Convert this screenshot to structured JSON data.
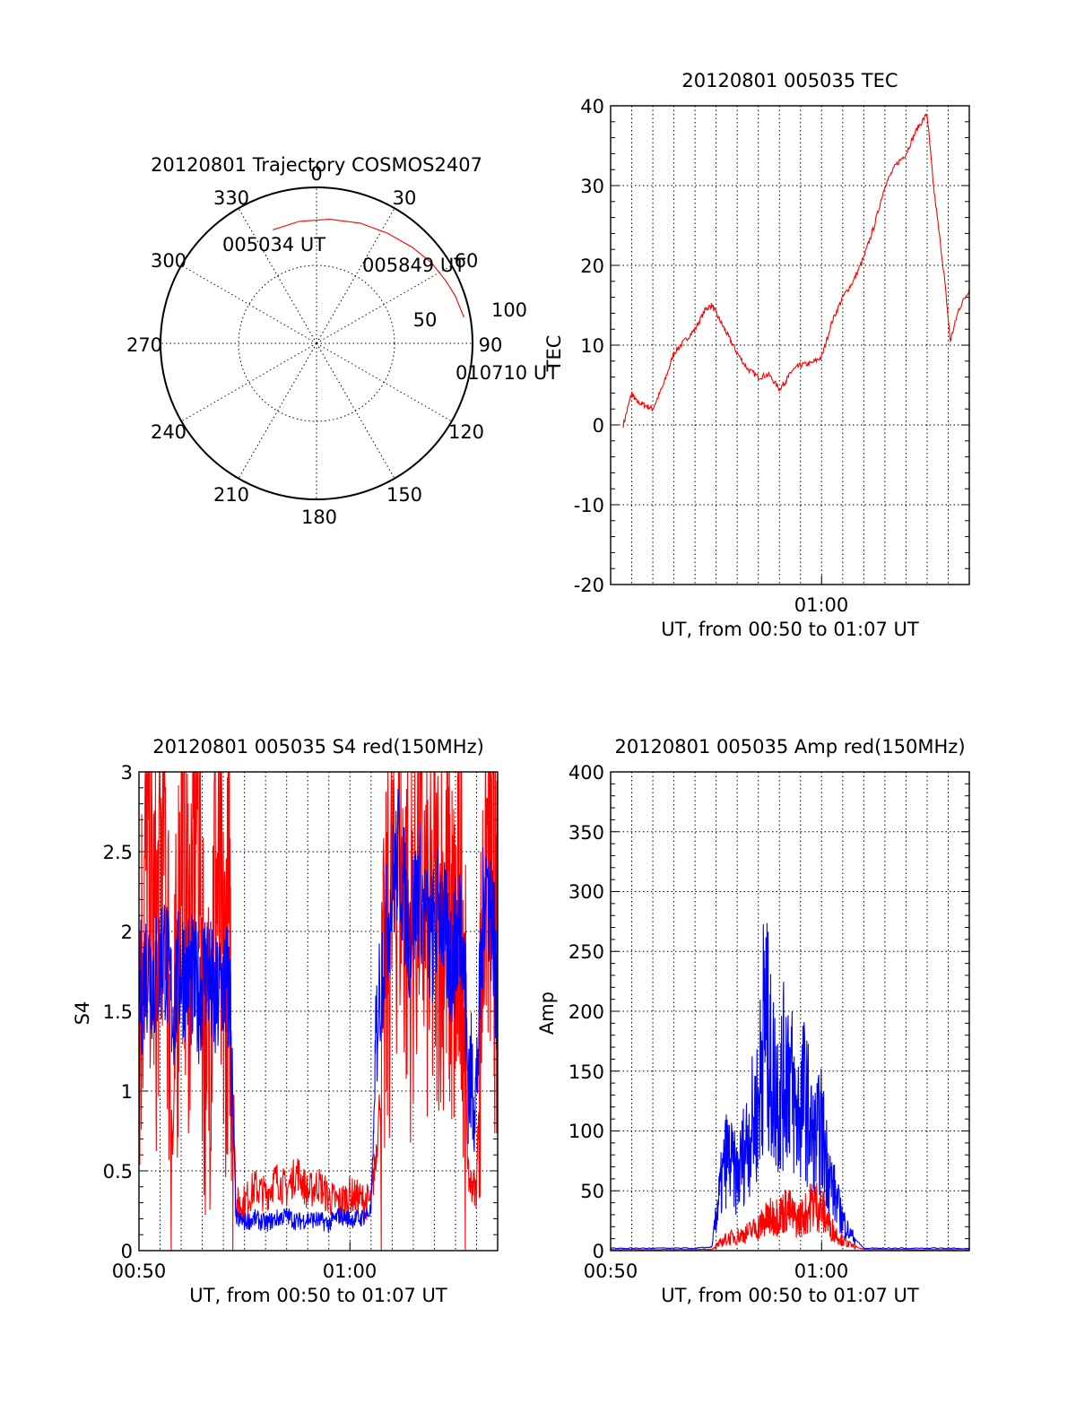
{
  "colors": {
    "red": "#ff0000",
    "blue": "#0000ff",
    "axis": "#000000"
  },
  "chart_data": [
    {
      "id": "polar",
      "type": "polar",
      "title": "20120801 Trajectory COSMOS2407",
      "azimuth_labels": [
        "0",
        "30",
        "60",
        "90",
        "120",
        "150",
        "180",
        "210",
        "240",
        "270",
        "300",
        "330"
      ],
      "elevation_labels": [
        "50",
        "100"
      ],
      "point_labels": [
        "005034 UT",
        "005849 UT",
        "010710 UT"
      ],
      "trajectory": {
        "azimuth_deg": [
          -21,
          -8,
          6,
          20,
          33,
          45,
          55,
          64,
          71,
          77,
          80
        ],
        "zenith_rel": [
          0.78,
          0.79,
          0.8,
          0.82,
          0.84,
          0.87,
          0.9,
          0.92,
          0.94,
          0.95,
          0.96
        ]
      },
      "grid": true
    },
    {
      "id": "tec",
      "type": "line",
      "title": "20120801 005035 TEC",
      "xlabel": "UT, from 00:50 to 01:07 UT",
      "ylabel": "TEC",
      "x_tick_labels": [
        "01:00"
      ],
      "y_tick_labels": [
        "40",
        "30",
        "20",
        "10",
        "0",
        "-10",
        "-20"
      ],
      "ylim": [
        -20,
        40
      ],
      "xlim_minutes": [
        0,
        17
      ],
      "grid": true,
      "series": [
        {
          "color": "red",
          "x": [
            0.6,
            1.0,
            1.2,
            1.6,
            2.0,
            2.5,
            3.0,
            3.5,
            4.0,
            4.5,
            4.8,
            5.2,
            5.6,
            6.0,
            6.5,
            7.0,
            7.5,
            8.0,
            8.3,
            8.6,
            9.0,
            9.5,
            10.0,
            10.5,
            11.0,
            11.5,
            12.0,
            12.5,
            13.0,
            13.5,
            14.0,
            14.5,
            15.0,
            15.3,
            15.8,
            16.1,
            16.5,
            17.0
          ],
          "y": [
            0,
            4,
            3,
            2.5,
            2,
            5,
            9,
            10.5,
            12,
            14.5,
            15,
            13,
            11,
            9,
            7,
            6,
            6.3,
            4.5,
            5.5,
            6.8,
            7.5,
            7.7,
            8.5,
            13,
            16,
            18,
            21,
            25,
            30,
            32.5,
            34,
            37,
            39,
            30,
            19,
            10.5,
            14.5,
            17
          ]
        }
      ]
    },
    {
      "id": "s4",
      "type": "line",
      "title": "20120801 005035 S4 red(150MHz)",
      "xlabel": "UT, from 00:50 to 01:07 UT",
      "ylabel": "S4",
      "x_tick_labels": [
        "00:50",
        "01:00"
      ],
      "y_tick_labels": [
        "3",
        "2.5",
        "2",
        "1.5",
        "1",
        "0.5",
        "0"
      ],
      "ylim": [
        0,
        3
      ],
      "xlim_minutes": [
        0,
        17
      ],
      "grid": true,
      "series": [
        {
          "color": "red",
          "x": [
            0,
            0.4,
            0.8,
            1.2,
            1.6,
            2.0,
            2.4,
            2.8,
            3.2,
            3.6,
            4.0,
            4.3,
            4.6,
            5.0,
            5.5,
            6.0,
            6.5,
            7.0,
            7.5,
            8.0,
            8.5,
            9.0,
            9.5,
            10.0,
            10.5,
            11.0,
            11.3,
            11.8,
            12.3,
            12.8,
            13.3,
            13.8,
            14.3,
            14.7,
            15.0,
            15.3,
            15.6,
            16.0,
            16.4,
            16.8,
            17.0
          ],
          "y": [
            1.5,
            2.6,
            1.8,
            2.9,
            0.6,
            2.7,
            1.9,
            3.0,
            0.9,
            2.5,
            1.6,
            2.0,
            0.28,
            0.3,
            0.4,
            0.35,
            0.45,
            0.38,
            0.5,
            0.36,
            0.42,
            0.33,
            0.3,
            0.35,
            0.32,
            0.3,
            0.7,
            1.8,
            2.6,
            1.9,
            2.4,
            1.8,
            2.2,
            2.0,
            1.7,
            2.3,
            0.45,
            0.38,
            2.6,
            2.2,
            1.6
          ]
        },
        {
          "color": "blue",
          "x": [
            0,
            0.4,
            0.8,
            1.2,
            1.6,
            2.0,
            2.4,
            2.8,
            3.2,
            3.6,
            4.0,
            4.3,
            4.6,
            5.0,
            5.5,
            6.0,
            6.5,
            7.0,
            7.5,
            8.0,
            8.5,
            9.0,
            9.5,
            10.0,
            10.5,
            11.0,
            11.3,
            11.8,
            12.3,
            12.8,
            13.3,
            13.8,
            14.3,
            14.7,
            15.0,
            15.3,
            15.6,
            16.0,
            16.4,
            16.8,
            17.0
          ],
          "y": [
            1.6,
            1.8,
            1.7,
            1.9,
            1.5,
            1.8,
            1.7,
            1.6,
            1.8,
            1.5,
            1.7,
            1.6,
            0.2,
            0.18,
            0.2,
            0.17,
            0.2,
            0.22,
            0.18,
            0.2,
            0.19,
            0.17,
            0.22,
            0.2,
            0.2,
            0.25,
            1.5,
            2.1,
            2.5,
            2.0,
            2.3,
            1.9,
            2.2,
            1.8,
            1.9,
            2.1,
            1.1,
            1.0,
            2.4,
            2.0,
            1.5
          ]
        }
      ]
    },
    {
      "id": "amp",
      "type": "line",
      "title": "20120801 005035 Amp red(150MHz)",
      "xlabel": "UT, from 00:50 to 01:07 UT",
      "ylabel": "Amp",
      "x_tick_labels": [
        "00:50",
        "01:00"
      ],
      "y_tick_labels": [
        "400",
        "350",
        "300",
        "250",
        "200",
        "150",
        "100",
        "50",
        "0"
      ],
      "ylim": [
        0,
        400
      ],
      "xlim_minutes": [
        0,
        17
      ],
      "grid": true,
      "series": [
        {
          "color": "blue",
          "x": [
            0,
            2,
            4,
            4.8,
            5.1,
            5.5,
            6.0,
            6.5,
            7.0,
            7.3,
            7.6,
            8.0,
            8.4,
            8.8,
            9.2,
            9.6,
            10.0,
            10.4,
            10.9,
            11.3,
            12,
            14,
            17
          ],
          "y": [
            2,
            2,
            2,
            3,
            40,
            80,
            60,
            95,
            120,
            200,
            150,
            130,
            160,
            110,
            130,
            90,
            100,
            60,
            30,
            15,
            2,
            2,
            2
          ]
        },
        {
          "color": "red",
          "x": [
            0,
            2,
            4,
            4.8,
            5.1,
            5.5,
            6.0,
            6.5,
            7.0,
            7.3,
            7.6,
            8.0,
            8.4,
            8.8,
            9.2,
            9.6,
            10.0,
            10.4,
            10.9,
            11.3,
            12,
            14,
            17
          ],
          "y": [
            1,
            1,
            1,
            1,
            5,
            10,
            12,
            15,
            20,
            25,
            28,
            30,
            35,
            25,
            30,
            40,
            35,
            20,
            10,
            5,
            1,
            1,
            1
          ]
        }
      ]
    }
  ]
}
